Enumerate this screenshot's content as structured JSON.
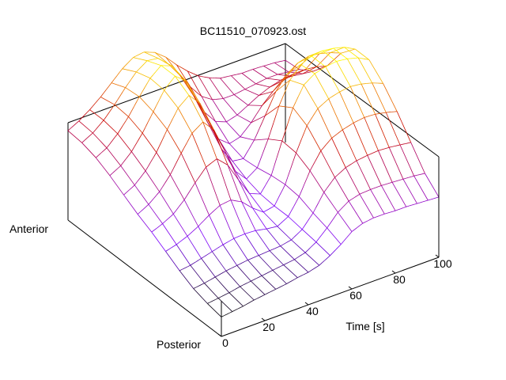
{
  "chart_data": {
    "type": "surface",
    "title": "BC11510_070923.ost",
    "xlabel": "Time [s]",
    "y_axis_labels": {
      "near": "Posterior",
      "far": "Anterior"
    },
    "xlim": [
      0,
      100
    ],
    "x_ticks": [
      0,
      20,
      40,
      60,
      80,
      100
    ],
    "colormap": [
      "#000000",
      "#7a00ff",
      "#a0009c",
      "#c80000",
      "#f08000",
      "#ffff00"
    ],
    "grid": false,
    "legend": "none",
    "x": [
      0,
      5,
      10,
      15,
      20,
      25,
      30,
      35,
      40,
      45,
      50,
      55,
      60,
      65,
      70,
      75,
      80,
      85,
      90,
      95,
      100
    ],
    "rows": [
      {
        "position": "Posterior",
        "values": [
          0.18,
          0.2,
          0.22,
          0.25,
          0.27,
          0.29,
          0.31,
          0.34,
          0.36,
          0.4,
          0.48,
          0.58,
          0.7,
          0.76,
          0.78,
          0.78,
          0.77,
          0.77,
          0.76,
          0.75,
          0.74
        ]
      },
      {
        "position": "",
        "values": [
          0.22,
          0.24,
          0.26,
          0.29,
          0.31,
          0.33,
          0.35,
          0.37,
          0.39,
          0.43,
          0.52,
          0.66,
          0.82,
          0.92,
          0.96,
          0.97,
          0.97,
          0.96,
          0.95,
          0.94,
          0.92
        ]
      },
      {
        "position": "",
        "values": [
          0.28,
          0.3,
          0.33,
          0.36,
          0.38,
          0.4,
          0.41,
          0.42,
          0.43,
          0.46,
          0.55,
          0.72,
          0.95,
          1.1,
          1.18,
          1.22,
          1.24,
          1.25,
          1.24,
          1.22,
          1.2
        ]
      },
      {
        "position": "",
        "values": [
          0.38,
          0.4,
          0.44,
          0.48,
          0.52,
          0.55,
          0.56,
          0.55,
          0.52,
          0.5,
          0.58,
          0.8,
          1.1,
          1.32,
          1.44,
          1.5,
          1.54,
          1.56,
          1.55,
          1.52,
          1.48
        ]
      },
      {
        "position": "",
        "values": [
          0.5,
          0.54,
          0.6,
          0.68,
          0.78,
          0.86,
          0.88,
          0.8,
          0.66,
          0.55,
          0.58,
          0.82,
          1.2,
          1.52,
          1.7,
          1.78,
          1.82,
          1.84,
          1.82,
          1.78,
          1.72
        ]
      },
      {
        "position": "",
        "values": [
          0.62,
          0.68,
          0.76,
          0.9,
          1.08,
          1.24,
          1.3,
          1.16,
          0.9,
          0.66,
          0.6,
          0.8,
          1.22,
          1.62,
          1.88,
          1.98,
          2.02,
          2.04,
          2.02,
          1.98,
          1.9
        ]
      },
      {
        "position": "",
        "values": [
          0.72,
          0.8,
          0.92,
          1.1,
          1.34,
          1.56,
          1.66,
          1.5,
          1.16,
          0.82,
          0.66,
          0.76,
          1.1,
          1.5,
          1.8,
          1.96,
          2.02,
          2.04,
          2.02,
          1.98,
          1.9
        ]
      },
      {
        "position": "",
        "values": [
          0.84,
          0.92,
          1.06,
          1.26,
          1.52,
          1.76,
          1.88,
          1.72,
          1.36,
          0.98,
          0.76,
          0.74,
          0.94,
          1.22,
          1.5,
          1.68,
          1.78,
          1.82,
          1.8,
          1.76,
          1.7
        ]
      },
      {
        "position": "",
        "values": [
          0.96,
          1.04,
          1.18,
          1.38,
          1.62,
          1.86,
          2.0,
          1.88,
          1.56,
          1.2,
          0.92,
          0.8,
          0.84,
          0.98,
          1.16,
          1.3,
          1.4,
          1.44,
          1.44,
          1.42,
          1.38
        ]
      },
      {
        "position": "",
        "values": [
          1.06,
          1.14,
          1.28,
          1.46,
          1.68,
          1.88,
          2.0,
          1.94,
          1.72,
          1.42,
          1.14,
          0.96,
          0.9,
          0.94,
          1.02,
          1.1,
          1.16,
          1.2,
          1.2,
          1.18,
          1.16
        ]
      },
      {
        "position": "",
        "values": [
          1.12,
          1.2,
          1.32,
          1.48,
          1.66,
          1.82,
          1.92,
          1.9,
          1.76,
          1.56,
          1.34,
          1.16,
          1.06,
          1.02,
          1.02,
          1.04,
          1.06,
          1.08,
          1.08,
          1.06,
          1.04
        ]
      },
      {
        "position": "Anterior",
        "values": [
          1.14,
          1.22,
          1.32,
          1.44,
          1.58,
          1.72,
          1.82,
          1.84,
          1.78,
          1.66,
          1.5,
          1.36,
          1.24,
          1.16,
          1.1,
          1.08,
          1.06,
          1.06,
          1.05,
          1.04,
          1.02
        ]
      }
    ]
  }
}
